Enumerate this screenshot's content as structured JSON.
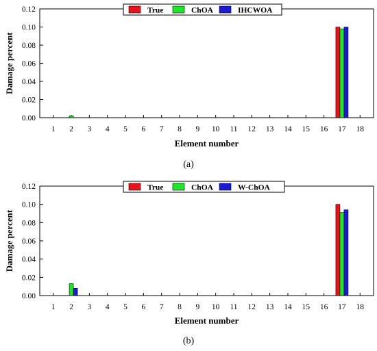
{
  "panels": [
    {
      "caption": "(a)"
    },
    {
      "caption": "(b)"
    }
  ],
  "chart_data": [
    {
      "type": "bar",
      "title": "",
      "xlabel": "Element number",
      "ylabel": "Damage percent",
      "ylim": [
        0,
        0.12
      ],
      "yticks": [
        "0.00",
        "0.02",
        "0.04",
        "0.06",
        "0.08",
        "0.10",
        "0.12"
      ],
      "categories": [
        "1",
        "2",
        "3",
        "4",
        "5",
        "6",
        "7",
        "8",
        "9",
        "10",
        "11",
        "12",
        "13",
        "14",
        "15",
        "16",
        "17",
        "18"
      ],
      "legend_position": "top-right",
      "grid": false,
      "series": [
        {
          "name": "True",
          "color": "#e8131b",
          "values": [
            0,
            0,
            0,
            0,
            0,
            0,
            0,
            0,
            0,
            0,
            0,
            0,
            0,
            0,
            0,
            0,
            0.1,
            0
          ]
        },
        {
          "name": "ChOA",
          "color": "#1ee62a",
          "values": [
            0,
            0.002,
            0,
            0,
            0,
            0,
            0,
            0,
            0,
            0,
            0,
            0,
            0,
            0,
            0,
            0,
            0.098,
            0
          ]
        },
        {
          "name": "IHCWOA",
          "color": "#1c1ad6",
          "values": [
            0,
            0,
            0,
            0,
            0,
            0,
            0,
            0,
            0,
            0,
            0,
            0,
            0,
            0,
            0,
            0,
            0.1,
            0
          ]
        }
      ]
    },
    {
      "type": "bar",
      "title": "",
      "xlabel": "Element number",
      "ylabel": "Damage percent",
      "ylim": [
        0,
        0.12
      ],
      "yticks": [
        "0.00",
        "0.02",
        "0.04",
        "0.06",
        "0.08",
        "0.10",
        "0.12"
      ],
      "categories": [
        "1",
        "2",
        "3",
        "4",
        "5",
        "6",
        "7",
        "8",
        "9",
        "10",
        "11",
        "12",
        "13",
        "14",
        "15",
        "16",
        "17",
        "18"
      ],
      "legend_position": "top-right",
      "grid": false,
      "series": [
        {
          "name": "True",
          "color": "#e8131b",
          "values": [
            0,
            0,
            0,
            0,
            0,
            0,
            0,
            0,
            0,
            0,
            0,
            0,
            0,
            0,
            0,
            0,
            0.1,
            0
          ]
        },
        {
          "name": "ChOA",
          "color": "#1ee62a",
          "values": [
            0,
            0.013,
            0,
            0,
            0,
            0,
            0,
            0,
            0,
            0,
            0,
            0,
            0,
            0,
            0,
            0,
            0.091,
            0
          ]
        },
        {
          "name": "W-ChOA",
          "color": "#1c1ad6",
          "values": [
            0,
            0.008,
            0,
            0,
            0,
            0,
            0,
            0,
            0,
            0,
            0,
            0,
            0,
            0,
            0,
            0,
            0.094,
            0
          ]
        }
      ]
    }
  ]
}
